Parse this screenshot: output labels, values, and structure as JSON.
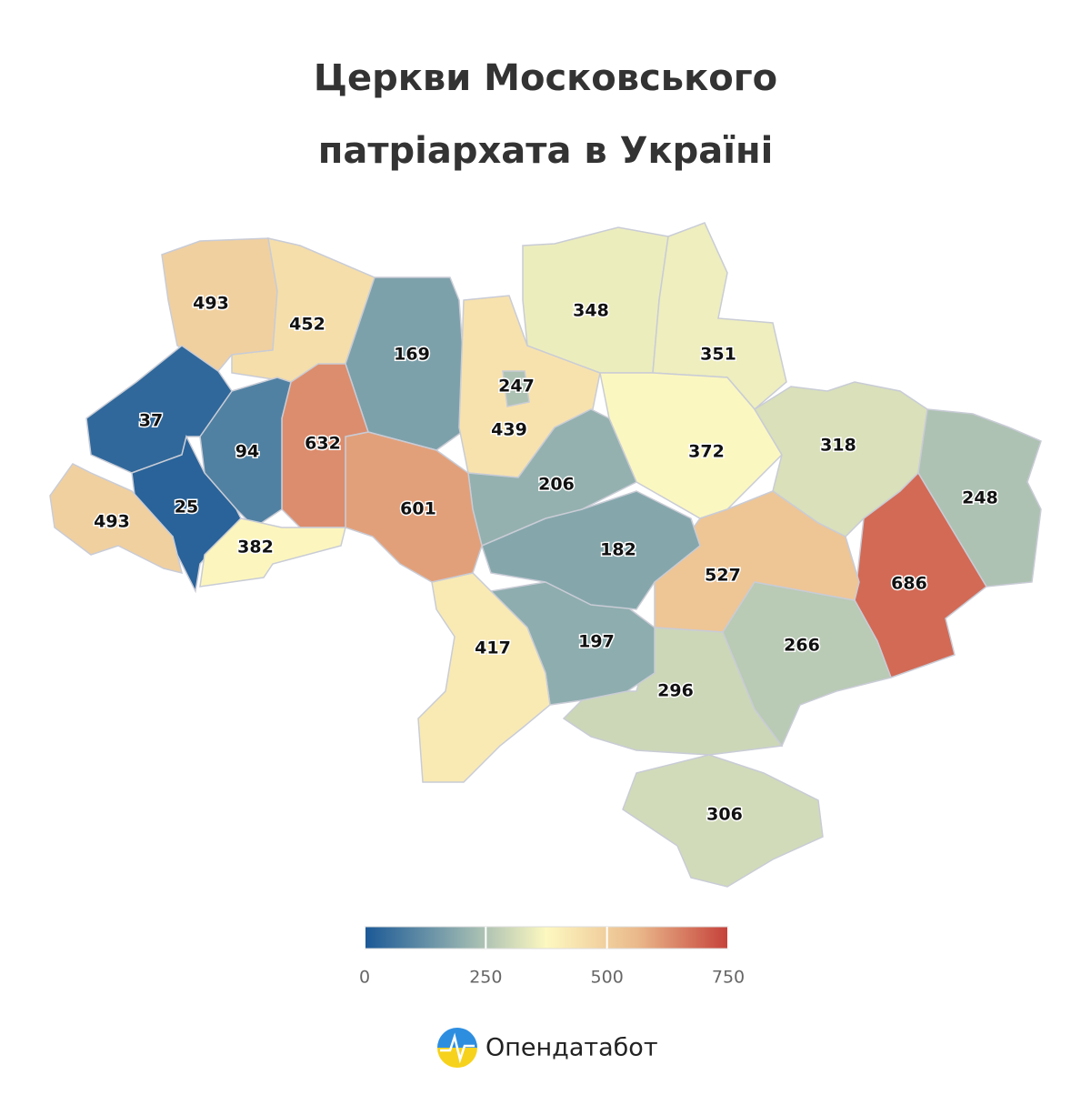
{
  "title": [
    "Церкви Московського",
    "патріархата в Україні"
  ],
  "chart_data": {
    "type": "choropleth",
    "values": [
      493,
      452,
      169,
      439,
      247,
      348,
      351,
      372,
      318,
      248,
      686,
      266,
      527,
      296,
      306,
      197,
      182,
      206,
      417,
      601,
      632,
      94,
      37,
      25,
      493,
      382
    ],
    "colorscale": [
      "#1a5896",
      "#88a9ad",
      "#fdf8c0",
      "#eab98b",
      "#c5413a"
    ],
    "colorlim": [
      0,
      750
    ],
    "colorticks": [
      0,
      250,
      500,
      750
    ]
  },
  "logo": "Опендатабот"
}
